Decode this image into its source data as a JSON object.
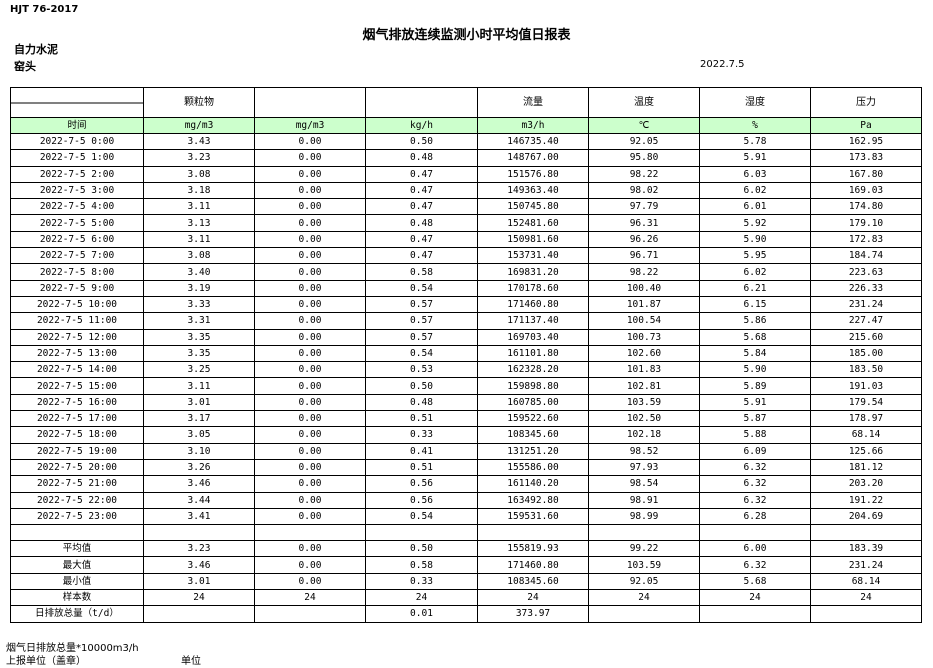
{
  "header": {
    "code": "HJT  76-2017",
    "title": "烟气排放连续监测小时平均值日报表",
    "company": "自力水泥",
    "site": "窑头",
    "date": "2022.7.5"
  },
  "table": {
    "columns": [
      null,
      "颗粒物",
      null,
      null,
      "流量",
      "温度",
      "湿度",
      "压力"
    ],
    "units": [
      "时间",
      "mg/m3",
      "mg/m3",
      "kg/h",
      "m3/h",
      "℃",
      "%",
      "Pa"
    ],
    "rows": [
      [
        "2022-7-5  0:00",
        "3.43",
        "0.00",
        "0.50",
        "146735.40",
        "92.05",
        "5.78",
        "162.95"
      ],
      [
        "2022-7-5  1:00",
        "3.23",
        "0.00",
        "0.48",
        "148767.00",
        "95.80",
        "5.91",
        "173.83"
      ],
      [
        "2022-7-5  2:00",
        "3.08",
        "0.00",
        "0.47",
        "151576.80",
        "98.22",
        "6.03",
        "167.80"
      ],
      [
        "2022-7-5  3:00",
        "3.18",
        "0.00",
        "0.47",
        "149363.40",
        "98.02",
        "6.02",
        "169.03"
      ],
      [
        "2022-7-5  4:00",
        "3.11",
        "0.00",
        "0.47",
        "150745.80",
        "97.79",
        "6.01",
        "174.80"
      ],
      [
        "2022-7-5  5:00",
        "3.13",
        "0.00",
        "0.48",
        "152481.60",
        "96.31",
        "5.92",
        "179.10"
      ],
      [
        "2022-7-5  6:00",
        "3.11",
        "0.00",
        "0.47",
        "150981.60",
        "96.26",
        "5.90",
        "172.83"
      ],
      [
        "2022-7-5  7:00",
        "3.08",
        "0.00",
        "0.47",
        "153731.40",
        "96.71",
        "5.95",
        "184.74"
      ],
      [
        "2022-7-5  8:00",
        "3.40",
        "0.00",
        "0.58",
        "169831.20",
        "98.22",
        "6.02",
        "223.63"
      ],
      [
        "2022-7-5  9:00",
        "3.19",
        "0.00",
        "0.54",
        "170178.60",
        "100.40",
        "6.21",
        "226.33"
      ],
      [
        "2022-7-5 10:00",
        "3.33",
        "0.00",
        "0.57",
        "171460.80",
        "101.87",
        "6.15",
        "231.24"
      ],
      [
        "2022-7-5 11:00",
        "3.31",
        "0.00",
        "0.57",
        "171137.40",
        "100.54",
        "5.86",
        "227.47"
      ],
      [
        "2022-7-5 12:00",
        "3.35",
        "0.00",
        "0.57",
        "169703.40",
        "100.73",
        "5.68",
        "215.60"
      ],
      [
        "2022-7-5 13:00",
        "3.35",
        "0.00",
        "0.54",
        "161101.80",
        "102.60",
        "5.84",
        "185.00"
      ],
      [
        "2022-7-5 14:00",
        "3.25",
        "0.00",
        "0.53",
        "162328.20",
        "101.83",
        "5.90",
        "183.50"
      ],
      [
        "2022-7-5 15:00",
        "3.11",
        "0.00",
        "0.50",
        "159898.80",
        "102.81",
        "5.89",
        "191.03"
      ],
      [
        "2022-7-5 16:00",
        "3.01",
        "0.00",
        "0.48",
        "160785.00",
        "103.59",
        "5.91",
        "179.54"
      ],
      [
        "2022-7-5 17:00",
        "3.17",
        "0.00",
        "0.51",
        "159522.60",
        "102.50",
        "5.87",
        "178.97"
      ],
      [
        "2022-7-5 18:00",
        "3.05",
        "0.00",
        "0.33",
        "108345.60",
        "102.18",
        "5.88",
        "68.14"
      ],
      [
        "2022-7-5 19:00",
        "3.10",
        "0.00",
        "0.41",
        "131251.20",
        "98.52",
        "6.09",
        "125.66"
      ],
      [
        "2022-7-5 20:00",
        "3.26",
        "0.00",
        "0.51",
        "155586.00",
        "97.93",
        "6.32",
        "181.12"
      ],
      [
        "2022-7-5 21:00",
        "3.46",
        "0.00",
        "0.56",
        "161140.20",
        "98.54",
        "6.32",
        "203.20"
      ],
      [
        "2022-7-5 22:00",
        "3.44",
        "0.00",
        "0.56",
        "163492.80",
        "98.91",
        "6.32",
        "191.22"
      ],
      [
        "2022-7-5 23:00",
        "3.41",
        "0.00",
        "0.54",
        "159531.60",
        "98.99",
        "6.28",
        "204.69"
      ]
    ],
    "summary": [
      [
        "平均值",
        "3.23",
        "0.00",
        "0.50",
        "155819.93",
        "99.22",
        "6.00",
        "183.39"
      ],
      [
        "最大值",
        "3.46",
        "0.00",
        "0.58",
        "171460.80",
        "103.59",
        "6.32",
        "231.24"
      ],
      [
        "最小值",
        "3.01",
        "0.00",
        "0.33",
        "108345.60",
        "92.05",
        "5.68",
        "68.14"
      ],
      [
        "样本数",
        "24",
        "24",
        "24",
        "24",
        "24",
        "24",
        "24"
      ],
      [
        "日排放总量（t/d）",
        null,
        null,
        "0.01",
        "373.97",
        null,
        null,
        null
      ]
    ]
  },
  "footer": {
    "note": "烟气日排放总量*10000m3/h",
    "reporter": "上报单位（盖章）",
    "unit": "单位"
  }
}
